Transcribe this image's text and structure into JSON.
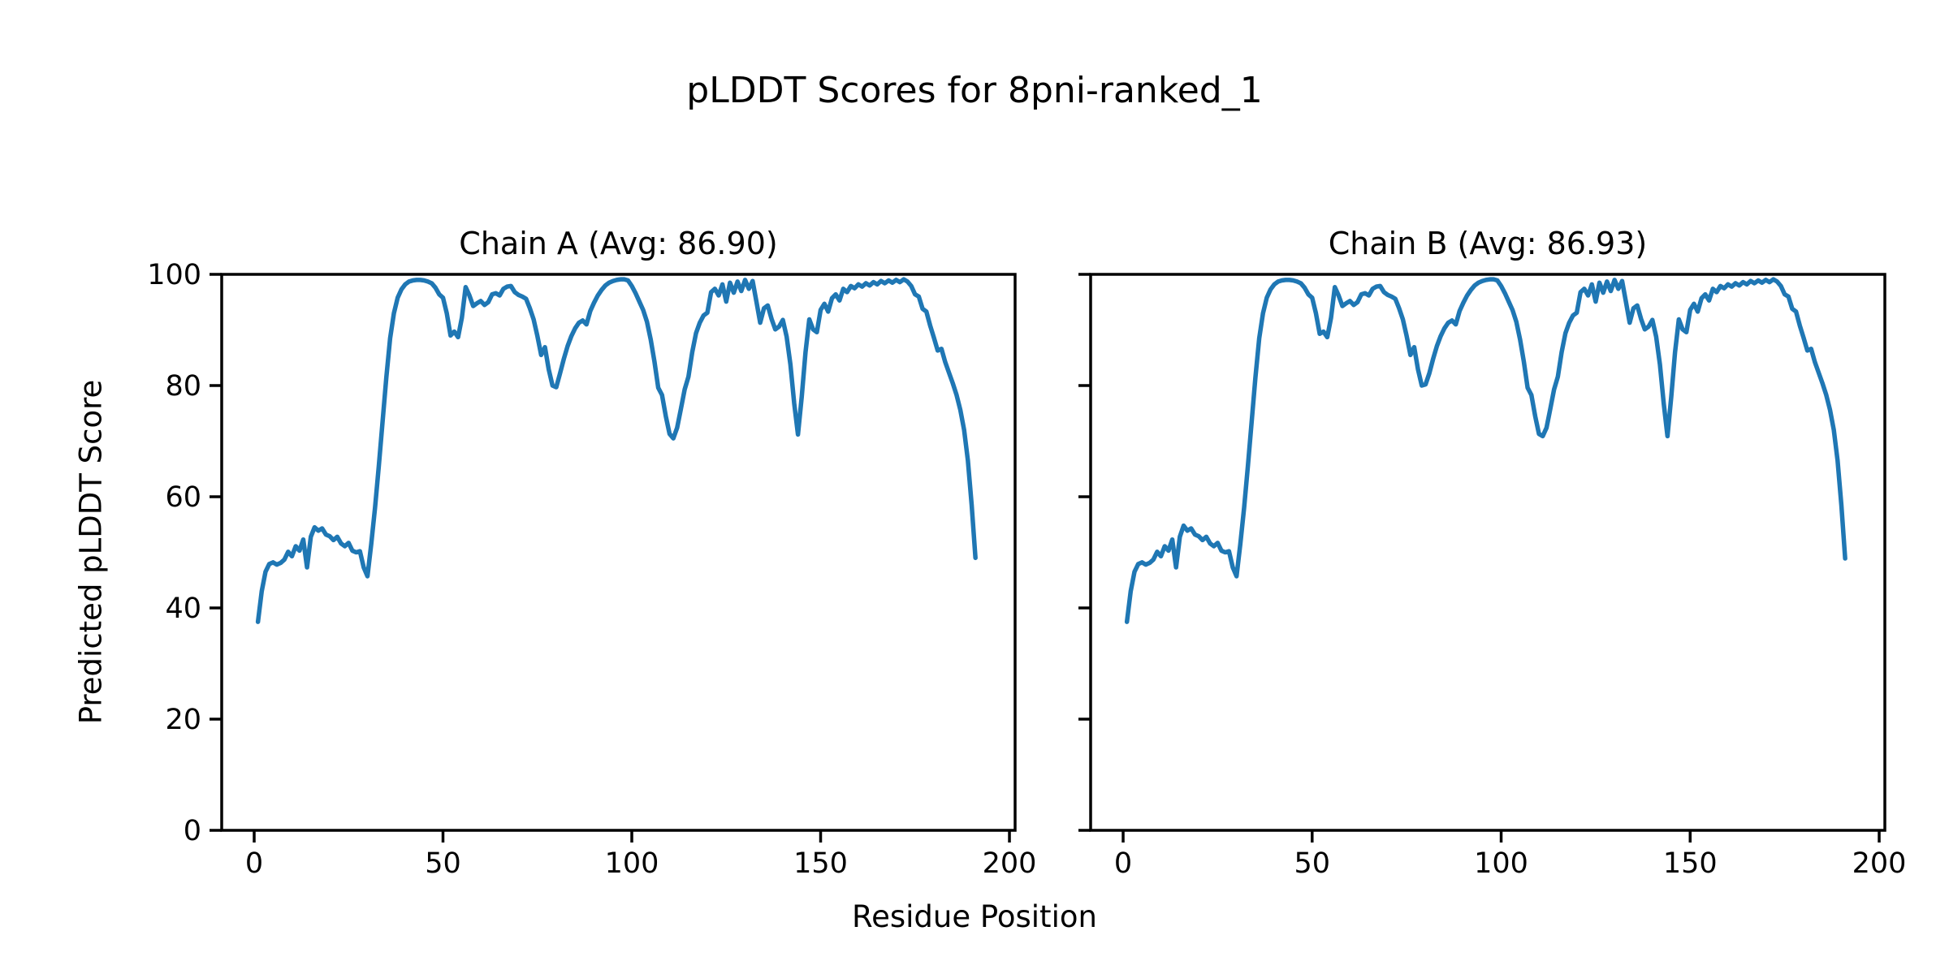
{
  "figure": {
    "background_color": "#ffffff",
    "text_color": "#000000"
  },
  "chart_data": {
    "type": "line",
    "title": "pLDDT Scores for 8pni-ranked_1",
    "xlabel": "Residue Position",
    "ylabel": "Predicted pLDDT Score",
    "x_ticks": [
      0,
      50,
      100,
      150,
      200
    ],
    "y_ticks": [
      0,
      20,
      40,
      60,
      80,
      100
    ],
    "xlim": [
      -8.6,
      201.5
    ],
    "ylim": [
      0,
      100
    ],
    "grid": false,
    "legend": "none",
    "line_color": "#1f77b4",
    "spine_color": "#000000",
    "x_start": 1,
    "x_step": 1,
    "subplots": [
      {
        "title": "Chain A (Avg: 86.90)",
        "chain": "A",
        "avg": "86.90",
        "values": [
          37.5,
          43.0,
          46.5,
          47.9,
          48.2,
          47.8,
          48.1,
          48.7,
          50.1,
          49.3,
          51.1,
          50.3,
          52.3,
          47.3,
          52.8,
          54.5,
          53.9,
          54.3,
          53.2,
          52.9,
          52.2,
          52.8,
          51.6,
          51.1,
          51.7,
          50.3,
          50.0,
          50.2,
          47.3,
          45.7,
          51.5,
          58.0,
          65.5,
          73.5,
          81.5,
          88.5,
          93.0,
          95.8,
          97.3,
          98.2,
          98.7,
          98.9,
          99.0,
          99.0,
          98.9,
          98.7,
          98.4,
          97.6,
          96.4,
          95.8,
          93.0,
          89.0,
          89.7,
          88.7,
          92.2,
          97.7,
          96.2,
          94.3,
          94.8,
          95.2,
          94.5,
          95.0,
          96.4,
          96.6,
          96.2,
          97.4,
          97.8,
          97.9,
          96.8,
          96.3,
          96.0,
          95.6,
          93.9,
          91.9,
          88.9,
          85.5,
          86.9,
          82.9,
          80.0,
          79.7,
          82.2,
          84.8,
          87.1,
          88.9,
          90.3,
          91.3,
          91.7,
          91.0,
          93.4,
          94.9,
          96.2,
          97.2,
          98.0,
          98.5,
          98.8,
          99.0,
          99.1,
          99.1,
          98.9,
          97.9,
          96.6,
          95.1,
          93.6,
          91.5,
          88.3,
          84.3,
          79.6,
          78.3,
          74.5,
          71.3,
          70.5,
          72.4,
          75.8,
          79.3,
          81.6,
          86.0,
          89.4,
          91.3,
          92.6,
          93.1,
          96.8,
          97.4,
          96.2,
          98.2,
          95.1,
          98.5,
          96.7,
          98.7,
          97.0,
          99.0,
          97.4,
          98.8,
          95.1,
          91.3,
          93.9,
          94.4,
          92.0,
          90.1,
          90.6,
          91.8,
          88.8,
          83.8,
          76.8,
          71.2,
          78.0,
          86.0,
          91.9,
          90.1,
          89.6,
          93.6,
          94.7,
          93.3,
          95.7,
          96.4,
          95.3,
          97.4,
          96.8,
          97.9,
          97.5,
          98.2,
          97.8,
          98.4,
          98.0,
          98.6,
          98.2,
          98.8,
          98.4,
          98.9,
          98.5,
          99.0,
          98.6,
          99.1,
          98.7,
          97.9,
          96.4,
          96.0,
          93.8,
          93.3,
          90.8,
          88.6,
          86.3,
          86.6,
          84.2,
          82.3,
          80.4,
          78.3,
          75.6,
          72.0,
          66.5,
          58.5,
          49.0
        ]
      },
      {
        "title": "Chain B (Avg: 86.93)",
        "chain": "B",
        "avg": "86.93",
        "values": [
          37.5,
          43.0,
          46.5,
          47.9,
          48.2,
          47.8,
          48.1,
          48.7,
          50.1,
          49.3,
          51.1,
          50.3,
          52.3,
          47.3,
          52.8,
          54.8,
          53.9,
          54.3,
          53.2,
          52.9,
          52.2,
          52.8,
          51.6,
          51.1,
          51.7,
          50.3,
          50.0,
          50.2,
          47.3,
          45.7,
          51.5,
          58.0,
          65.5,
          73.5,
          81.5,
          88.5,
          93.0,
          95.8,
          97.3,
          98.2,
          98.7,
          98.9,
          99.0,
          99.0,
          98.9,
          98.7,
          98.4,
          97.6,
          96.4,
          95.8,
          93.0,
          89.3,
          89.7,
          88.7,
          92.2,
          97.7,
          96.2,
          94.3,
          94.8,
          95.2,
          94.5,
          95.0,
          96.4,
          96.6,
          96.2,
          97.4,
          97.8,
          97.9,
          96.8,
          96.3,
          96.0,
          95.6,
          93.9,
          91.9,
          88.9,
          85.5,
          86.9,
          82.9,
          80.0,
          80.2,
          82.2,
          84.8,
          87.1,
          88.9,
          90.3,
          91.3,
          91.7,
          91.0,
          93.4,
          94.9,
          96.2,
          97.2,
          98.0,
          98.5,
          98.8,
          99.0,
          99.1,
          99.1,
          98.9,
          97.9,
          96.6,
          95.1,
          93.6,
          91.5,
          88.3,
          84.3,
          79.6,
          78.3,
          74.5,
          71.3,
          70.9,
          72.4,
          75.8,
          79.3,
          81.6,
          86.0,
          89.4,
          91.3,
          92.6,
          93.1,
          96.8,
          97.4,
          96.2,
          98.2,
          95.1,
          98.5,
          96.7,
          98.7,
          97.0,
          99.0,
          97.4,
          98.8,
          95.1,
          91.3,
          93.9,
          94.4,
          92.0,
          90.1,
          90.6,
          91.8,
          88.8,
          83.8,
          76.8,
          70.9,
          78.0,
          86.0,
          91.9,
          90.1,
          89.6,
          93.6,
          94.7,
          93.3,
          95.7,
          96.4,
          95.3,
          97.4,
          96.8,
          97.9,
          97.5,
          98.2,
          97.8,
          98.4,
          98.0,
          98.6,
          98.2,
          98.8,
          98.4,
          98.9,
          98.5,
          99.0,
          98.6,
          99.1,
          98.7,
          97.9,
          96.4,
          96.0,
          93.8,
          93.3,
          90.8,
          88.6,
          86.3,
          86.6,
          84.2,
          82.3,
          80.4,
          78.3,
          75.6,
          72.0,
          66.5,
          58.5,
          48.9
        ]
      }
    ]
  }
}
